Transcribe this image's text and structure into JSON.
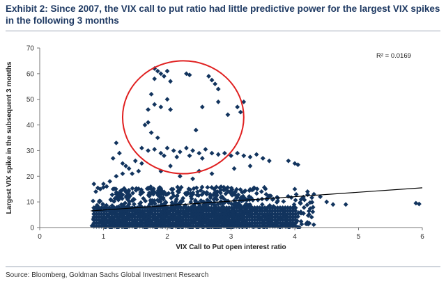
{
  "title": "Exhibit 2: Since 2007, the VIX call to put ratio had little predictive power for the largest VIX spikes in the following 3 months",
  "source": "Source: Bloomberg, Goldman Sachs Global Investment Research",
  "colors": {
    "title": "#1f3a63",
    "marker": "#12345e",
    "trendline": "#000000",
    "highlight_circle": "#e02020"
  },
  "chart_data": {
    "type": "scatter",
    "xlabel": "VIX Call to Put open interest ratio",
    "ylabel": "Largest VIX spike in the subsequent 3 months",
    "xlim": [
      0,
      6
    ],
    "ylim": [
      0,
      70
    ],
    "xticks": [
      "0",
      "1",
      "2",
      "3",
      "4",
      "5",
      "6"
    ],
    "yticks": [
      "0",
      "10",
      "20",
      "30",
      "40",
      "50",
      "60",
      "70"
    ],
    "grid": false,
    "marker": "diamond",
    "annotation": "R² = 0.0169",
    "trendline": {
      "x": [
        0.8,
        6.0
      ],
      "y": [
        6.5,
        15.5
      ]
    },
    "highlight": {
      "center": [
        2.25,
        43
      ],
      "radius_x": 0.95,
      "radius_y": 22,
      "color": "#e02020"
    },
    "points": [
      [
        1.8,
        62
      ],
      [
        1.85,
        61
      ],
      [
        1.9,
        60
      ],
      [
        1.95,
        59
      ],
      [
        2.0,
        61
      ],
      [
        1.8,
        58
      ],
      [
        2.05,
        57
      ],
      [
        2.3,
        60
      ],
      [
        2.35,
        59.5
      ],
      [
        2.65,
        59
      ],
      [
        2.7,
        57.5
      ],
      [
        2.75,
        56
      ],
      [
        2.8,
        54
      ],
      [
        1.75,
        52
      ],
      [
        2.0,
        50
      ],
      [
        1.8,
        48
      ],
      [
        1.9,
        47
      ],
      [
        2.05,
        46
      ],
      [
        1.7,
        46
      ],
      [
        2.55,
        47
      ],
      [
        2.8,
        49
      ],
      [
        3.1,
        47
      ],
      [
        3.15,
        45
      ],
      [
        3.2,
        49
      ],
      [
        2.95,
        44
      ],
      [
        1.7,
        41
      ],
      [
        1.65,
        40
      ],
      [
        1.75,
        37
      ],
      [
        1.85,
        35
      ],
      [
        2.45,
        38
      ],
      [
        1.6,
        31
      ],
      [
        1.7,
        30
      ],
      [
        1.8,
        30.5
      ],
      [
        1.9,
        29
      ],
      [
        2.0,
        31
      ],
      [
        2.1,
        30
      ],
      [
        2.2,
        29.5
      ],
      [
        2.3,
        31
      ],
      [
        2.4,
        30
      ],
      [
        2.5,
        29
      ],
      [
        2.6,
        30.5
      ],
      [
        2.7,
        29
      ],
      [
        2.8,
        28.5
      ],
      [
        2.9,
        29
      ],
      [
        3.0,
        28
      ],
      [
        3.1,
        29
      ],
      [
        3.2,
        28
      ],
      [
        3.3,
        27.5
      ],
      [
        3.4,
        28.5
      ],
      [
        3.5,
        27
      ],
      [
        1.95,
        28
      ],
      [
        2.35,
        28
      ],
      [
        2.55,
        27
      ],
      [
        2.15,
        27.5
      ],
      [
        1.2,
        33
      ],
      [
        1.25,
        29
      ],
      [
        1.15,
        27
      ],
      [
        1.3,
        25
      ],
      [
        1.35,
        24
      ],
      [
        1.4,
        23
      ],
      [
        1.5,
        26
      ],
      [
        1.45,
        21
      ],
      [
        1.55,
        22
      ],
      [
        1.6,
        25
      ],
      [
        1.3,
        21
      ],
      [
        1.2,
        20
      ],
      [
        1.1,
        18
      ],
      [
        1.0,
        17
      ],
      [
        0.95,
        15
      ],
      [
        0.85,
        17
      ],
      [
        0.88,
        14
      ],
      [
        1.05,
        16
      ],
      [
        1.15,
        15
      ],
      [
        3.5,
        27
      ],
      [
        3.9,
        26
      ],
      [
        4.0,
        25
      ],
      [
        4.05,
        24.5
      ],
      [
        3.3,
        24
      ],
      [
        3.6,
        26
      ],
      [
        2.5,
        22
      ],
      [
        2.7,
        21
      ],
      [
        3.05,
        23
      ],
      [
        2.2,
        20
      ],
      [
        2.4,
        19
      ],
      [
        2.05,
        24
      ],
      [
        1.9,
        22
      ]
    ],
    "dense_cloud": {
      "x_range": [
        0.8,
        4.3
      ],
      "y_range": [
        0,
        16
      ],
      "count": 900
    },
    "sparse_points": [
      [
        4.2,
        14
      ],
      [
        4.3,
        13
      ],
      [
        4.4,
        12
      ],
      [
        4.6,
        9
      ],
      [
        4.8,
        9
      ],
      [
        5.9,
        9.5
      ],
      [
        5.95,
        9.2
      ],
      [
        4.1,
        11
      ],
      [
        4.0,
        15
      ],
      [
        4.5,
        10
      ]
    ]
  }
}
